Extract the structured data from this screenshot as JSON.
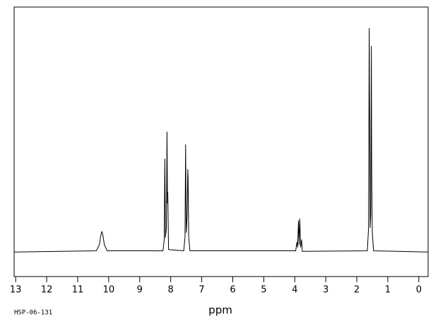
{
  "chart_data": {
    "type": "line",
    "x_label": "ppm",
    "sample_id": "HSP-06-131",
    "x": [
      13.05,
      10.4,
      10.3,
      10.25,
      10.22,
      10.19,
      10.14,
      10.05,
      8.25,
      8.21,
      8.19,
      8.17,
      8.14,
      8.12,
      8.105,
      8.095,
      8.07,
      7.58,
      7.54,
      7.52,
      7.5,
      7.47,
      7.45,
      7.44,
      7.42,
      7.38,
      3.97,
      3.93,
      3.91,
      3.88,
      3.86,
      3.84,
      3.81,
      3.78,
      3.76,
      1.66,
      1.62,
      1.6,
      1.585,
      1.57,
      1.55,
      1.53,
      1.52,
      1.5,
      1.46,
      -0.3
    ],
    "values": [
      0,
      0.5,
      3,
      7,
      8.4,
      7,
      3,
      0.5,
      0.5,
      5,
      38,
      6,
      10,
      49,
      20,
      24.5,
      1,
      0.5,
      6,
      43.8,
      8,
      15,
      33.7,
      30,
      6,
      0.5,
      0.5,
      4,
      2,
      12.7,
      3,
      13.5,
      2,
      5,
      0.3,
      0.5,
      10,
      91.3,
      51.7,
      10,
      15,
      84,
      33.7,
      8,
      0.5,
      0
    ],
    "color": "#000000",
    "xlim": [
      13.05,
      -0.3
    ],
    "ylim": [
      -10,
      100
    ],
    "xticks": [
      13,
      12,
      11,
      10,
      9,
      8,
      7,
      6,
      5,
      4,
      3,
      2,
      1,
      0
    ],
    "grid": false
  }
}
